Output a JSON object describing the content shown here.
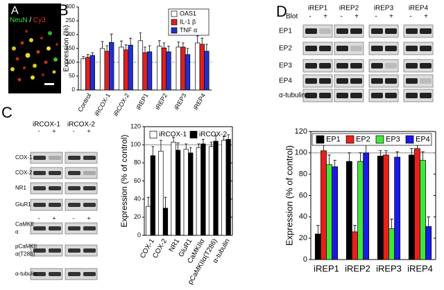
{
  "panel_labels": [
    "A",
    "B",
    "C",
    "D"
  ],
  "image_a": {
    "label_1": "NeuN",
    "separator": "/",
    "label_2": "Cy3"
  },
  "blots_c": {
    "groups": [
      "iRCOX-1",
      "iRCOX-2"
    ],
    "signs": [
      "-",
      "+"
    ],
    "rows": [
      [
        "COX-1"
      ],
      [
        "COX-2"
      ],
      [
        "NR1"
      ],
      [
        "GluR1"
      ],
      [
        "CaMKII",
        "α"
      ],
      [
        "pCaMKII",
        "α(T286)"
      ],
      [
        "α-tubulin"
      ]
    ]
  },
  "blots_d": {
    "blot_label": "Blot",
    "groups": [
      "iREP1",
      "iREP2",
      "iREP3",
      "iREP4"
    ],
    "signs": [
      "-",
      "+"
    ],
    "rows": [
      "EP1",
      "EP2",
      "EP3",
      "EP4",
      "α-tubulin"
    ]
  },
  "chart_data": [
    {
      "type": "bar",
      "ylabel": "Expression (%)",
      "categories": [
        "Control",
        "iRCOX-1",
        "iRCOX-2",
        "iREP1",
        "iREP2",
        "iREP3",
        "iREP4"
      ],
      "series": [
        {
          "name": "OAS1",
          "color": "#ffffff",
          "values": [
            113,
            150,
            155,
            178,
            158,
            155,
            170
          ],
          "errors": [
            8,
            25,
            22,
            28,
            20,
            18,
            25
          ]
        },
        {
          "name": "IL-1 β",
          "color": "#e02020",
          "values": [
            118,
            140,
            145,
            135,
            152,
            155,
            165
          ],
          "errors": [
            10,
            20,
            18,
            20,
            18,
            15,
            22
          ]
        },
        {
          "name": "TNF α",
          "color": "#2030d0",
          "values": [
            125,
            172,
            162,
            138,
            138,
            128,
            140
          ],
          "errors": [
            10,
            30,
            25,
            22,
            20,
            22,
            25
          ]
        }
      ],
      "ylim": [
        0,
        300
      ],
      "yticks": [
        0,
        50,
        100,
        150,
        200,
        250,
        300
      ],
      "reference_line": 100,
      "legend": "upper right"
    },
    {
      "type": "bar",
      "ylabel": "Expression (% of control)",
      "categories": [
        "COX-1",
        "COX-2",
        "NR1",
        "GluR1",
        "CaMKIIα",
        "pCaMKIIα(T286)",
        "α-tubulin"
      ],
      "series": [
        {
          "name": "iRCOX-1",
          "color": "#ffffff",
          "values": [
            32,
            93,
            103,
            95,
            97,
            98,
            105
          ],
          "errors": [
            10,
            12,
            5,
            6,
            4,
            5,
            4
          ]
        },
        {
          "name": "iRCOX-2",
          "color": "#000000",
          "values": [
            88,
            30,
            94,
            91,
            101,
            104,
            106
          ],
          "errors": [
            10,
            12,
            8,
            6,
            5,
            6,
            5
          ]
        }
      ],
      "ylim": [
        0,
        120
      ],
      "yticks": [
        0,
        20,
        40,
        60,
        80,
        100,
        120
      ],
      "reference_line": 100,
      "legend": "top"
    },
    {
      "type": "bar",
      "ylabel": "Expression (% of control)",
      "categories": [
        "iREP1",
        "iREP2",
        "iREP3",
        "iREP4"
      ],
      "series": [
        {
          "name": "EP1",
          "color": "#000000",
          "values": [
            24,
            92,
            97,
            98
          ],
          "errors": [
            8,
            8,
            5,
            6
          ]
        },
        {
          "name": "EP2",
          "color": "#e8201c",
          "values": [
            102,
            26,
            98,
            104
          ],
          "errors": [
            5,
            6,
            4,
            3
          ]
        },
        {
          "name": "EP3",
          "color": "#3ee83a",
          "values": [
            89,
            92,
            29,
            93
          ],
          "errors": [
            9,
            8,
            9,
            8
          ]
        },
        {
          "name": "EP4",
          "color": "#1a1ae8",
          "values": [
            87,
            100,
            96,
            31
          ],
          "errors": [
            6,
            8,
            5,
            9
          ]
        }
      ],
      "ylim": [
        0,
        120
      ],
      "yticks": [
        0,
        20,
        40,
        60,
        80,
        100,
        120
      ],
      "reference_line": 100,
      "legend": "top"
    }
  ]
}
